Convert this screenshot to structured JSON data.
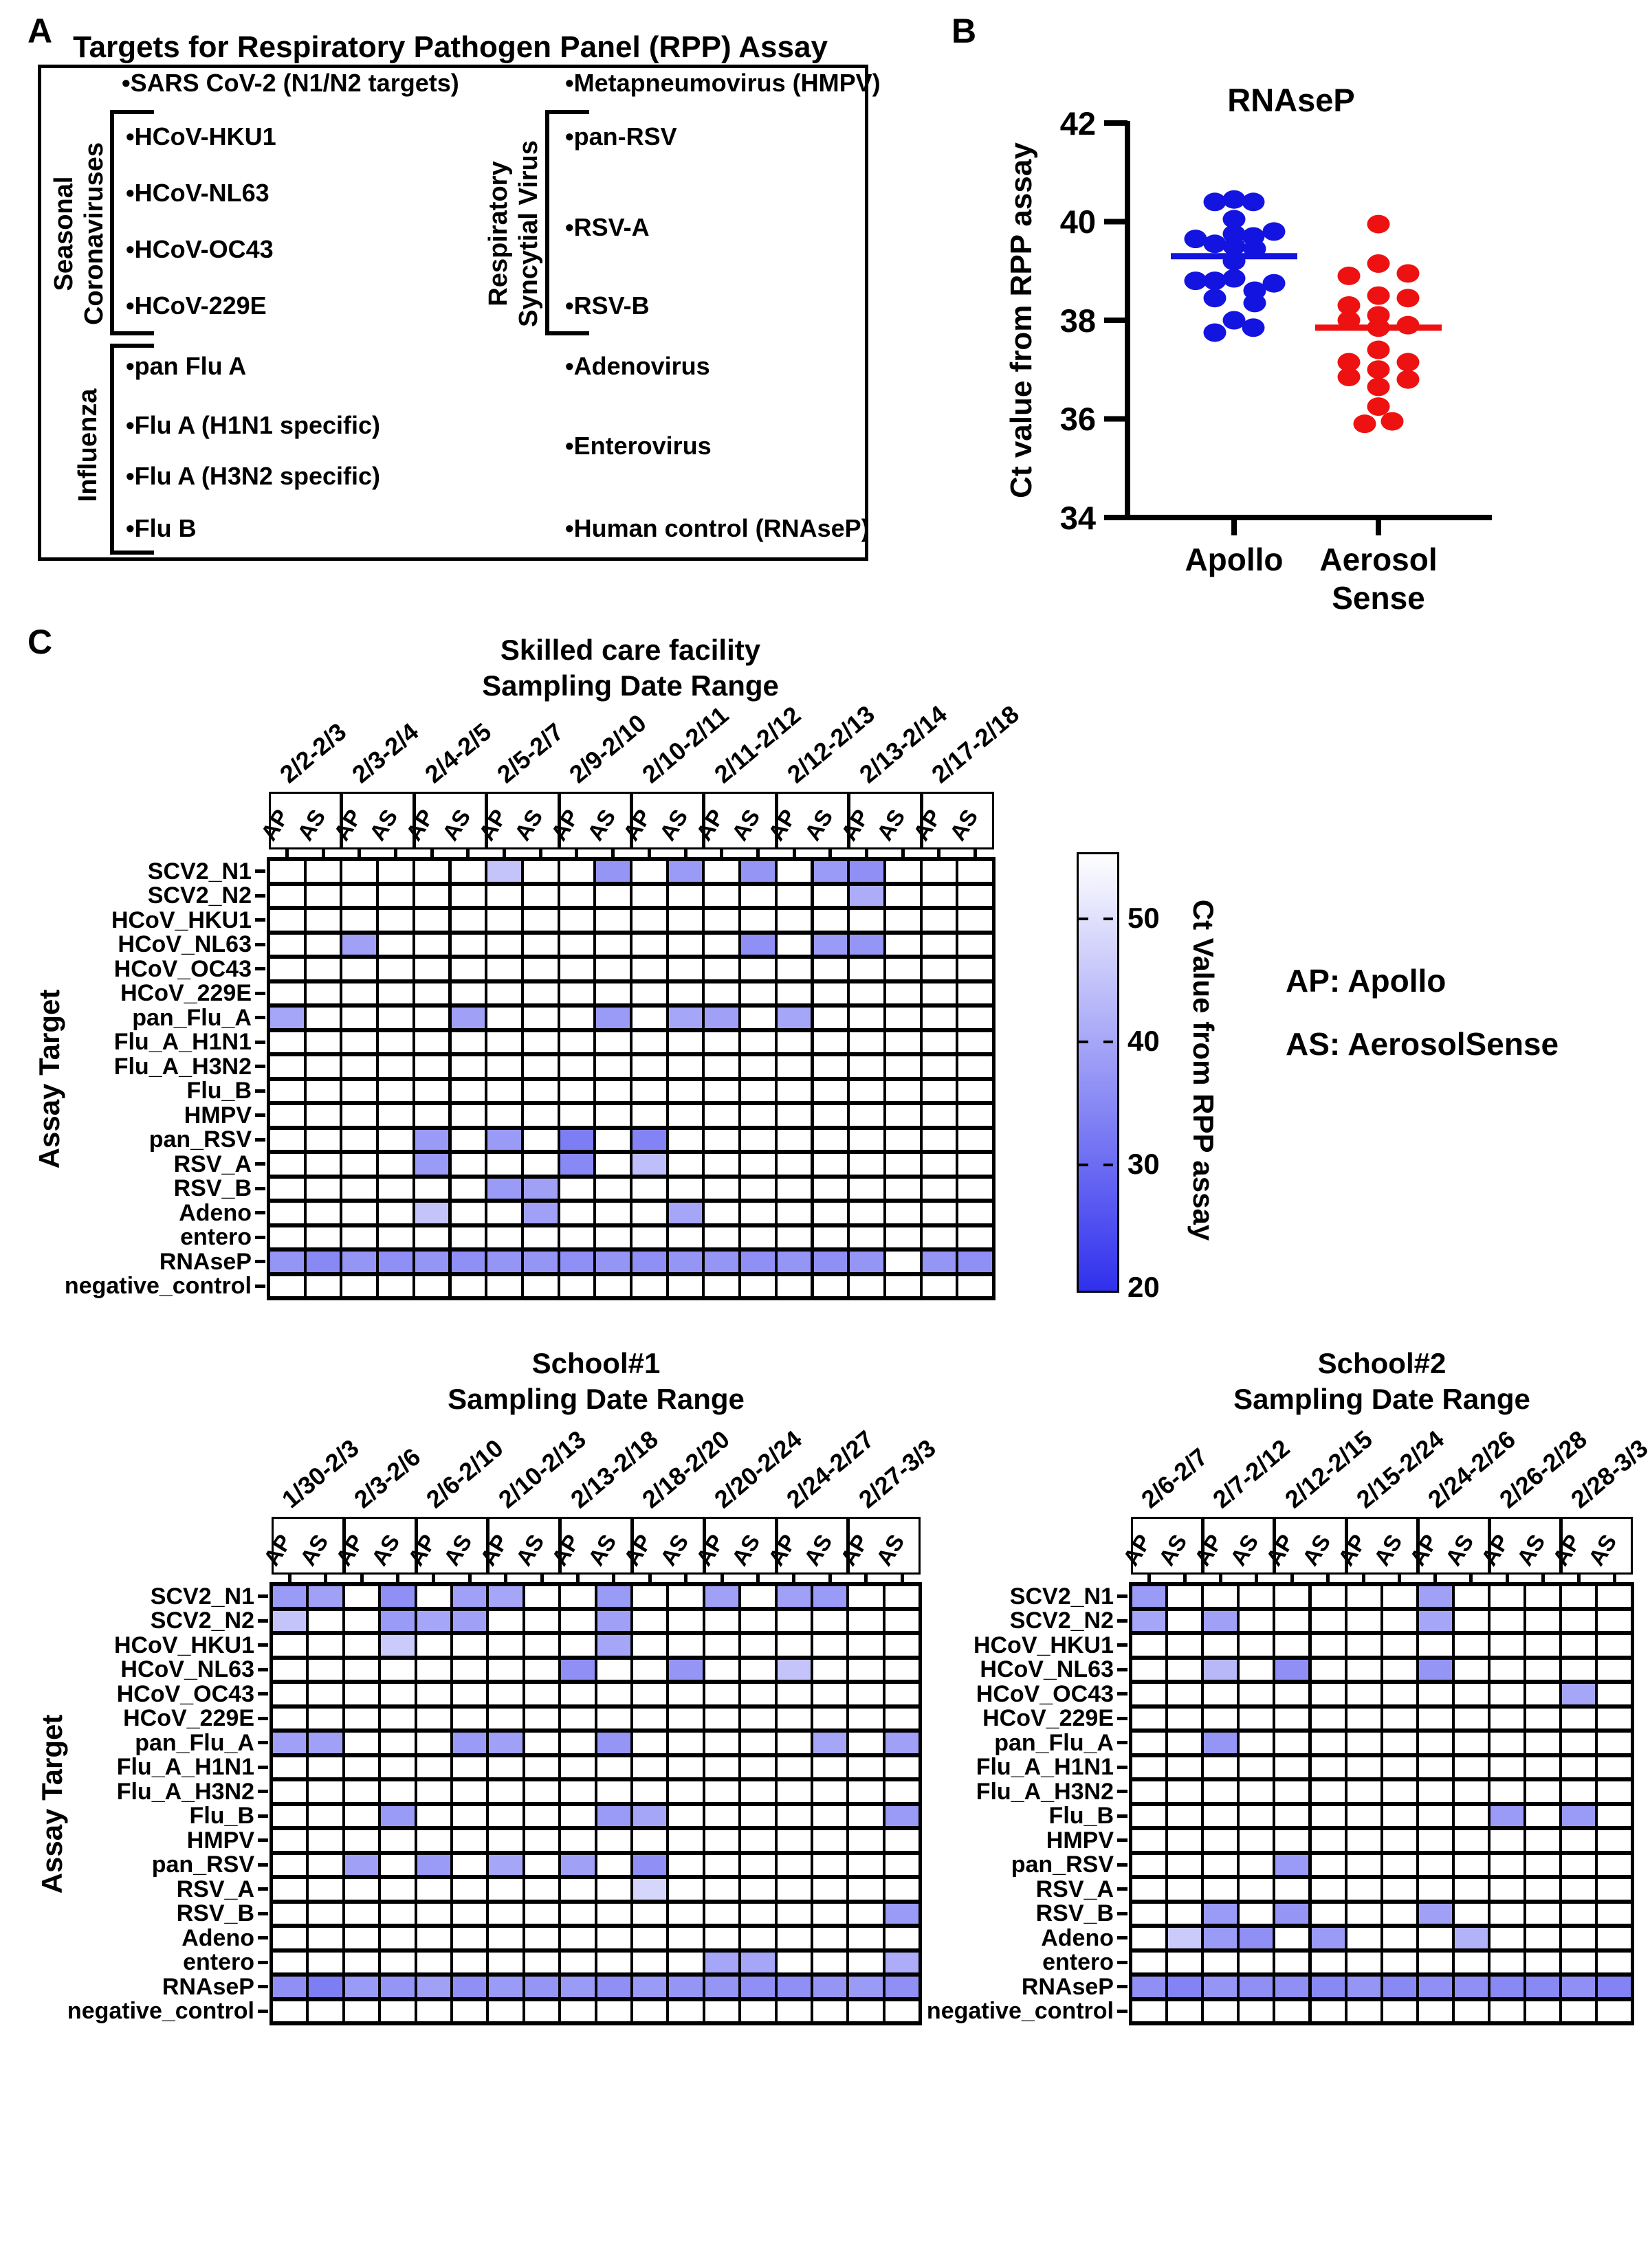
{
  "panels": {
    "a": "A",
    "b": "B",
    "c": "C"
  },
  "panel_a": {
    "title": "Targets for Respiratory Pathogen Panel (RPP) Assay",
    "top_left_item": "•SARS CoV-2 (N1/N2 targets)",
    "top_right_item": "•Metapneumovirus (HMPV)",
    "groups": {
      "seasonal": {
        "label_lines": [
          "Seasonal",
          "Coronaviruses"
        ],
        "items": [
          "•HCoV-HKU1",
          "•HCoV-NL63",
          "•HCoV-OC43",
          "•HCoV-229E"
        ]
      },
      "influenza": {
        "label": "Influenza",
        "items": [
          "•pan Flu A",
          "•Flu A (H1N1 specific)",
          "•Flu A (H3N2 specific)",
          "•Flu B"
        ]
      },
      "rsv": {
        "label_lines": [
          "Respiratory",
          "Syncytial Virus"
        ],
        "items": [
          "•pan-RSV",
          "•RSV-A",
          "•RSV-B"
        ]
      }
    },
    "right_items": {
      "adenovirus": "•Adenovirus",
      "enterovirus": "•Enterovirus",
      "human_control": "•Human control (RNAseP)"
    }
  },
  "legend": {
    "ap": "AP: Apollo",
    "as": "AS: AerosolSense"
  },
  "colorbar": {
    "label": "Ct Value from RPP assay",
    "ticks": [
      50,
      40,
      30,
      20
    ],
    "domain": [
      20,
      55
    ]
  },
  "chart_data": [
    {
      "type": "scatter",
      "title": "RNAseP",
      "ylabel": "Ct value from RPP assay",
      "ylim": [
        34,
        42
      ],
      "yticks": [
        42,
        40,
        38,
        36,
        34
      ],
      "groups": [
        {
          "label_lines": [
            "Apollo"
          ],
          "color": "#1414e0",
          "mean": 39.3,
          "points": [
            [
              -28,
              40.4
            ],
            [
              0,
              40.45
            ],
            [
              28,
              40.4
            ],
            [
              0,
              40.05
            ],
            [
              58,
              39.8
            ],
            [
              0,
              39.75
            ],
            [
              28,
              39.7
            ],
            [
              -56,
              39.65
            ],
            [
              -28,
              39.55
            ],
            [
              0,
              39.5
            ],
            [
              30,
              39.45
            ],
            [
              0,
              39.2
            ],
            [
              0,
              38.85
            ],
            [
              -28,
              38.8
            ],
            [
              -56,
              38.8
            ],
            [
              58,
              38.75
            ],
            [
              30,
              38.6
            ],
            [
              -28,
              38.45
            ],
            [
              30,
              38.35
            ],
            [
              0,
              38.0
            ],
            [
              28,
              37.85
            ],
            [
              -28,
              37.75
            ]
          ]
        },
        {
          "label_lines": [
            "Aerosol",
            "Sense"
          ],
          "color": "#ee1111",
          "mean": 37.85,
          "points": [
            [
              0,
              39.95
            ],
            [
              0,
              39.15
            ],
            [
              43,
              38.95
            ],
            [
              -43,
              38.9
            ],
            [
              0,
              38.5
            ],
            [
              43,
              38.45
            ],
            [
              -43,
              38.3
            ],
            [
              0,
              38.1
            ],
            [
              -43,
              38.0
            ],
            [
              43,
              37.9
            ],
            [
              0,
              37.85
            ],
            [
              0,
              37.4
            ],
            [
              -43,
              37.15
            ],
            [
              43,
              37.15
            ],
            [
              0,
              37.0
            ],
            [
              -43,
              36.85
            ],
            [
              43,
              36.8
            ],
            [
              0,
              36.65
            ],
            [
              0,
              36.25
            ],
            [
              20,
              35.95
            ],
            [
              -20,
              35.9
            ]
          ]
        }
      ]
    },
    {
      "type": "heatmap",
      "title_lines": [
        "Skilled care facility",
        "Sampling Date Range"
      ],
      "ylabel": "Assay Target",
      "sub_columns": [
        "AP",
        "AS"
      ],
      "date_groups": [
        "2/2-2/3",
        "2/3-2/4",
        "2/4-2/5",
        "2/5-2/7",
        "2/9-2/10",
        "2/10-2/11",
        "2/11-2/12",
        "2/12-2/13",
        "2/13-2/14",
        "2/17-2/18"
      ],
      "rows": [
        "SCV2_N1",
        "SCV2_N2",
        "HCoV_HKU1",
        "HCoV_NL63",
        "HCoV_OC43",
        "HCoV_229E",
        "pan_Flu_A",
        "Flu_A_H1N1",
        "Flu_A_H3N2",
        "Flu_B",
        "HMPV",
        "pan_RSV",
        "RSV_A",
        "RSV_B",
        "Adeno",
        "entero",
        "RNAseP",
        "negative_control"
      ],
      "cells": [
        [
          0,
          6,
          45
        ],
        [
          0,
          9,
          37
        ],
        [
          0,
          11,
          38
        ],
        [
          0,
          13,
          37
        ],
        [
          0,
          15,
          38
        ],
        [
          0,
          16,
          36
        ],
        [
          1,
          16,
          41
        ],
        [
          3,
          2,
          39
        ],
        [
          3,
          13,
          36
        ],
        [
          3,
          15,
          38
        ],
        [
          3,
          16,
          37
        ],
        [
          6,
          0,
          40
        ],
        [
          6,
          5,
          39
        ],
        [
          6,
          9,
          38
        ],
        [
          6,
          11,
          40
        ],
        [
          6,
          12,
          39
        ],
        [
          6,
          14,
          40
        ],
        [
          11,
          4,
          38
        ],
        [
          11,
          6,
          38
        ],
        [
          11,
          8,
          33
        ],
        [
          11,
          10,
          34
        ],
        [
          12,
          4,
          38
        ],
        [
          12,
          8,
          35
        ],
        [
          12,
          10,
          44
        ],
        [
          13,
          6,
          38
        ],
        [
          13,
          7,
          39
        ],
        [
          14,
          4,
          45
        ],
        [
          14,
          7,
          39
        ],
        [
          14,
          11,
          40
        ],
        [
          16,
          0,
          37
        ],
        [
          16,
          1,
          35
        ],
        [
          16,
          2,
          37
        ],
        [
          16,
          3,
          36
        ],
        [
          16,
          4,
          37
        ],
        [
          16,
          5,
          36
        ],
        [
          16,
          6,
          37
        ],
        [
          16,
          7,
          37
        ],
        [
          16,
          8,
          36
        ],
        [
          16,
          9,
          37
        ],
        [
          16,
          10,
          36
        ],
        [
          16,
          11,
          37
        ],
        [
          16,
          12,
          37
        ],
        [
          16,
          13,
          36
        ],
        [
          16,
          14,
          37
        ],
        [
          16,
          15,
          36
        ],
        [
          16,
          16,
          37
        ],
        [
          16,
          18,
          37
        ],
        [
          16,
          19,
          36
        ]
      ]
    },
    {
      "type": "heatmap",
      "title_lines": [
        "School#1",
        "Sampling Date Range"
      ],
      "ylabel": "Assay Target",
      "sub_columns": [
        "AP",
        "AS"
      ],
      "date_groups": [
        "1/30-2/3",
        "2/3-2/6",
        "2/6-2/10",
        "2/10-2/13",
        "2/13-2/18",
        "2/18-2/20",
        "2/20-2/24",
        "2/24-2/27",
        "2/27-3/3"
      ],
      "rows": [
        "SCV2_N1",
        "SCV2_N2",
        "HCoV_HKU1",
        "HCoV_NL63",
        "HCoV_OC43",
        "HCoV_229E",
        "pan_Flu_A",
        "Flu_A_H1N1",
        "Flu_A_H3N2",
        "Flu_B",
        "HMPV",
        "pan_RSV",
        "RSV_A",
        "RSV_B",
        "Adeno",
        "entero",
        "RNAseP",
        "negative_control"
      ],
      "cells": [
        [
          0,
          0,
          38
        ],
        [
          0,
          1,
          39
        ],
        [
          0,
          3,
          36
        ],
        [
          0,
          5,
          39
        ],
        [
          0,
          6,
          40
        ],
        [
          0,
          9,
          38
        ],
        [
          0,
          12,
          39
        ],
        [
          0,
          14,
          39
        ],
        [
          0,
          15,
          38
        ],
        [
          1,
          0,
          45
        ],
        [
          1,
          3,
          38
        ],
        [
          1,
          4,
          40
        ],
        [
          1,
          5,
          39
        ],
        [
          1,
          9,
          39
        ],
        [
          2,
          3,
          46
        ],
        [
          2,
          9,
          40
        ],
        [
          3,
          8,
          36
        ],
        [
          3,
          11,
          37
        ],
        [
          3,
          14,
          45
        ],
        [
          6,
          0,
          39
        ],
        [
          6,
          1,
          39
        ],
        [
          6,
          5,
          38
        ],
        [
          6,
          6,
          39
        ],
        [
          6,
          9,
          37
        ],
        [
          6,
          15,
          40
        ],
        [
          6,
          17,
          39
        ],
        [
          9,
          3,
          38
        ],
        [
          9,
          9,
          38
        ],
        [
          9,
          10,
          40
        ],
        [
          9,
          17,
          38
        ],
        [
          11,
          2,
          39
        ],
        [
          11,
          4,
          38
        ],
        [
          11,
          6,
          40
        ],
        [
          11,
          8,
          39
        ],
        [
          11,
          10,
          36
        ],
        [
          12,
          10,
          48
        ],
        [
          13,
          17,
          38
        ],
        [
          15,
          12,
          40
        ],
        [
          15,
          13,
          40
        ],
        [
          15,
          17,
          41
        ],
        [
          16,
          0,
          36
        ],
        [
          16,
          1,
          33
        ],
        [
          16,
          2,
          38
        ],
        [
          16,
          3,
          37
        ],
        [
          16,
          4,
          39
        ],
        [
          16,
          5,
          36
        ],
        [
          16,
          6,
          38
        ],
        [
          16,
          7,
          37
        ],
        [
          16,
          8,
          38
        ],
        [
          16,
          9,
          36
        ],
        [
          16,
          10,
          38
        ],
        [
          16,
          11,
          37
        ],
        [
          16,
          12,
          37
        ],
        [
          16,
          13,
          36
        ],
        [
          16,
          14,
          36
        ],
        [
          16,
          15,
          37
        ],
        [
          16,
          16,
          38
        ],
        [
          16,
          17,
          36
        ]
      ]
    },
    {
      "type": "heatmap",
      "title_lines": [
        "School#2",
        "Sampling Date Range"
      ],
      "ylabel": "",
      "sub_columns": [
        "AP",
        "AS"
      ],
      "date_groups": [
        "2/6-2/7",
        "2/7-2/12",
        "2/12-2/15",
        "2/15-2/24",
        "2/24-2/26",
        "2/26-2/28",
        "2/28-3/3"
      ],
      "rows": [
        "SCV2_N1",
        "SCV2_N2",
        "HCoV_HKU1",
        "HCoV_NL63",
        "HCoV_OC43",
        "HCoV_229E",
        "pan_Flu_A",
        "Flu_A_H1N1",
        "Flu_A_H3N2",
        "Flu_B",
        "HMPV",
        "pan_RSV",
        "RSV_A",
        "RSV_B",
        "Adeno",
        "entero",
        "RNAseP",
        "negative_control"
      ],
      "cells": [
        [
          0,
          0,
          38
        ],
        [
          0,
          8,
          39
        ],
        [
          1,
          0,
          40
        ],
        [
          1,
          2,
          39
        ],
        [
          1,
          8,
          40
        ],
        [
          3,
          2,
          43
        ],
        [
          3,
          4,
          36
        ],
        [
          3,
          8,
          37
        ],
        [
          4,
          12,
          40
        ],
        [
          6,
          2,
          37
        ],
        [
          9,
          10,
          38
        ],
        [
          9,
          12,
          38
        ],
        [
          11,
          4,
          38
        ],
        [
          13,
          2,
          38
        ],
        [
          13,
          4,
          37
        ],
        [
          13,
          8,
          39
        ],
        [
          14,
          1,
          46
        ],
        [
          14,
          2,
          38
        ],
        [
          14,
          3,
          36
        ],
        [
          14,
          5,
          38
        ],
        [
          14,
          9,
          42
        ],
        [
          16,
          0,
          36
        ],
        [
          16,
          1,
          34
        ],
        [
          16,
          2,
          37
        ],
        [
          16,
          3,
          36
        ],
        [
          16,
          4,
          36
        ],
        [
          16,
          5,
          35
        ],
        [
          16,
          6,
          37
        ],
        [
          16,
          7,
          35
        ],
        [
          16,
          8,
          36
        ],
        [
          16,
          9,
          36
        ],
        [
          16,
          10,
          35
        ],
        [
          16,
          11,
          35
        ],
        [
          16,
          12,
          36
        ],
        [
          16,
          13,
          34
        ]
      ]
    }
  ]
}
